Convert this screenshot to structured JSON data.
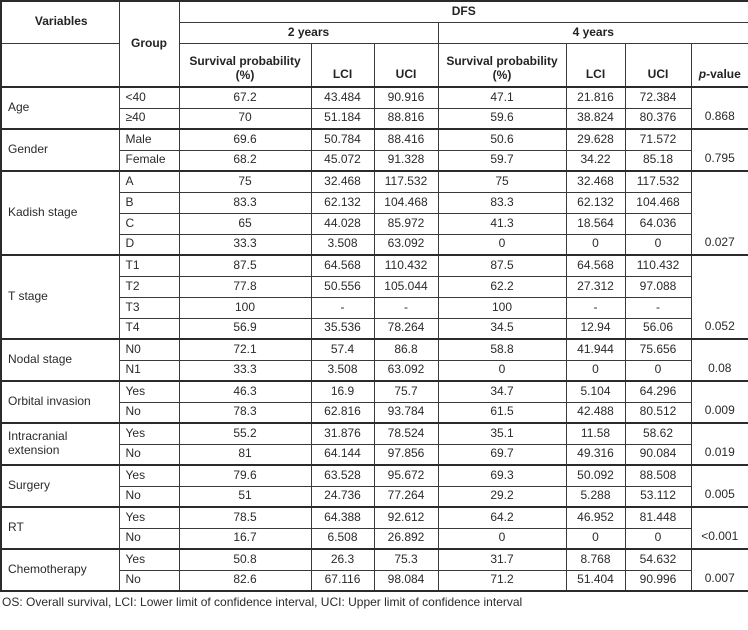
{
  "header": {
    "variables": "Variables",
    "group": "Group",
    "dfs": "DFS",
    "years2": "2 years",
    "years4": "4 years",
    "survival_line1": "Survival probability",
    "survival_line2": "(%)",
    "lci": "LCI",
    "uci": "UCI",
    "p_italic": "p",
    "p_rest": "-value"
  },
  "groups": [
    {
      "variable": "Age",
      "p": "0.868",
      "rows": [
        {
          "group": "<40",
          "sp2": "67.2",
          "lci2": "43.484",
          "uci2": "90.916",
          "sp4": "47.1",
          "lci4": "21.816",
          "uci4": "72.384"
        },
        {
          "group": "≥40",
          "sp2": "70",
          "lci2": "51.184",
          "uci2": "88.816",
          "sp4": "59.6",
          "lci4": "38.824",
          "uci4": "80.376"
        }
      ]
    },
    {
      "variable": "Gender",
      "p": "0.795",
      "rows": [
        {
          "group": "Male",
          "sp2": "69.6",
          "lci2": "50.784",
          "uci2": "88.416",
          "sp4": "50.6",
          "lci4": "29.628",
          "uci4": "71.572"
        },
        {
          "group": "Female",
          "sp2": "68.2",
          "lci2": "45.072",
          "uci2": "91.328",
          "sp4": "59.7",
          "lci4": "34.22",
          "uci4": "85.18"
        }
      ]
    },
    {
      "variable": "Kadish stage",
      "p": "0.027",
      "rows": [
        {
          "group": "A",
          "sp2": "75",
          "lci2": "32.468",
          "uci2": "117.532",
          "sp4": "75",
          "lci4": "32.468",
          "uci4": "117.532"
        },
        {
          "group": "B",
          "sp2": "83.3",
          "lci2": "62.132",
          "uci2": "104.468",
          "sp4": "83.3",
          "lci4": "62.132",
          "uci4": "104.468"
        },
        {
          "group": "C",
          "sp2": "65",
          "lci2": "44.028",
          "uci2": "85.972",
          "sp4": "41.3",
          "lci4": "18.564",
          "uci4": "64.036"
        },
        {
          "group": "D",
          "sp2": "33.3",
          "lci2": "3.508",
          "uci2": "63.092",
          "sp4": "0",
          "lci4": "0",
          "uci4": "0"
        }
      ]
    },
    {
      "variable": "T stage",
      "p": "0.052",
      "rows": [
        {
          "group": "T1",
          "sp2": "87.5",
          "lci2": "64.568",
          "uci2": "110.432",
          "sp4": "87.5",
          "lci4": "64.568",
          "uci4": "110.432"
        },
        {
          "group": "T2",
          "sp2": "77.8",
          "lci2": "50.556",
          "uci2": "105.044",
          "sp4": "62.2",
          "lci4": "27.312",
          "uci4": "97.088"
        },
        {
          "group": "T3",
          "sp2": "100",
          "lci2": "-",
          "uci2": "-",
          "sp4": "100",
          "lci4": "-",
          "uci4": "-"
        },
        {
          "group": "T4",
          "sp2": "56.9",
          "lci2": "35.536",
          "uci2": "78.264",
          "sp4": "34.5",
          "lci4": "12.94",
          "uci4": "56.06"
        }
      ]
    },
    {
      "variable": "Nodal stage",
      "p": "0.08",
      "rows": [
        {
          "group": "N0",
          "sp2": "72.1",
          "lci2": "57.4",
          "uci2": "86.8",
          "sp4": "58.8",
          "lci4": "41.944",
          "uci4": "75.656"
        },
        {
          "group": "N1",
          "sp2": "33.3",
          "lci2": "3.508",
          "uci2": "63.092",
          "sp4": "0",
          "lci4": "0",
          "uci4": "0"
        }
      ]
    },
    {
      "variable": "Orbital invasion",
      "p": "0.009",
      "rows": [
        {
          "group": "Yes",
          "sp2": "46.3",
          "lci2": "16.9",
          "uci2": "75.7",
          "sp4": "34.7",
          "lci4": "5.104",
          "uci4": "64.296"
        },
        {
          "group": "No",
          "sp2": "78.3",
          "lci2": "62.816",
          "uci2": "93.784",
          "sp4": "61.5",
          "lci4": "42.488",
          "uci4": "80.512"
        }
      ]
    },
    {
      "variable": "Intracranial extension",
      "p": "0.019",
      "rows": [
        {
          "group": "Yes",
          "sp2": "55.2",
          "lci2": "31.876",
          "uci2": "78.524",
          "sp4": "35.1",
          "lci4": "11.58",
          "uci4": "58.62"
        },
        {
          "group": "No",
          "sp2": "81",
          "lci2": "64.144",
          "uci2": "97.856",
          "sp4": "69.7",
          "lci4": "49.316",
          "uci4": "90.084"
        }
      ]
    },
    {
      "variable": "Surgery",
      "p": "0.005",
      "rows": [
        {
          "group": "Yes",
          "sp2": "79.6",
          "lci2": "63.528",
          "uci2": "95.672",
          "sp4": "69.3",
          "lci4": "50.092",
          "uci4": "88.508"
        },
        {
          "group": "No",
          "sp2": "51",
          "lci2": "24.736",
          "uci2": "77.264",
          "sp4": "29.2",
          "lci4": "5.288",
          "uci4": "53.112"
        }
      ]
    },
    {
      "variable": "RT",
      "p": "<0.001",
      "rows": [
        {
          "group": "Yes",
          "sp2": "78.5",
          "lci2": "64.388",
          "uci2": "92.612",
          "sp4": "64.2",
          "lci4": "46.952",
          "uci4": "81.448"
        },
        {
          "group": "No",
          "sp2": "16.7",
          "lci2": "6.508",
          "uci2": "26.892",
          "sp4": "0",
          "lci4": "0",
          "uci4": "0"
        }
      ]
    },
    {
      "variable": "Chemotherapy",
      "p": "0.007",
      "rows": [
        {
          "group": "Yes",
          "sp2": "50.8",
          "lci2": "26.3",
          "uci2": "75.3",
          "sp4": "31.7",
          "lci4": "8.768",
          "uci4": "54.632"
        },
        {
          "group": "No",
          "sp2": "82.6",
          "lci2": "67.116",
          "uci2": "98.084",
          "sp4": "71.2",
          "lci4": "51.404",
          "uci4": "90.996"
        }
      ]
    }
  ],
  "footnote": "OS: Overall survival, LCI: Lower limit of confidence interval, UCI: Upper limit of confidence interval",
  "colors": {
    "border_thin": "#3a3a3a",
    "border_thick": "#2b2b2b",
    "text": "#2a2a2a",
    "background": "#ffffff"
  }
}
